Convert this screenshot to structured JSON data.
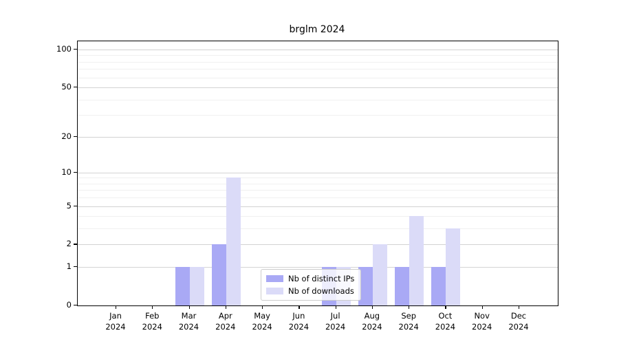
{
  "chart_data": {
    "type": "bar",
    "title": "brglm 2024",
    "xlabel": "",
    "ylabel": "",
    "yscale": "log1p",
    "ylim": [
      0,
      116
    ],
    "yticks": [
      0,
      1,
      2,
      5,
      10,
      20,
      50,
      100
    ],
    "minor_gridlines": [
      3,
      4,
      6,
      7,
      8,
      9,
      30,
      40,
      60,
      70,
      80,
      90
    ],
    "grid": true,
    "legend_position": "lower-center-inside",
    "categories": [
      {
        "month": "Jan",
        "year": "2024"
      },
      {
        "month": "Feb",
        "year": "2024"
      },
      {
        "month": "Mar",
        "year": "2024"
      },
      {
        "month": "Apr",
        "year": "2024"
      },
      {
        "month": "May",
        "year": "2024"
      },
      {
        "month": "Jun",
        "year": "2024"
      },
      {
        "month": "Jul",
        "year": "2024"
      },
      {
        "month": "Aug",
        "year": "2024"
      },
      {
        "month": "Sep",
        "year": "2024"
      },
      {
        "month": "Oct",
        "year": "2024"
      },
      {
        "month": "Nov",
        "year": "2024"
      },
      {
        "month": "Dec",
        "year": "2024"
      }
    ],
    "series": [
      {
        "name": "Nb of distinct IPs",
        "color": "#a9a9f5",
        "values": [
          0,
          0,
          1,
          2,
          0,
          0,
          1,
          1,
          1,
          1,
          0,
          0
        ]
      },
      {
        "name": "Nb of downloads",
        "color": "#dbdbf8",
        "values": [
          0,
          0,
          1,
          9,
          0,
          0,
          1,
          2,
          4,
          3,
          0,
          0
        ]
      }
    ],
    "colors": {
      "major_grid": "#d3d3d3",
      "minor_grid": "#f0f0f0",
      "spine": "#000000",
      "background": "#ffffff"
    }
  }
}
